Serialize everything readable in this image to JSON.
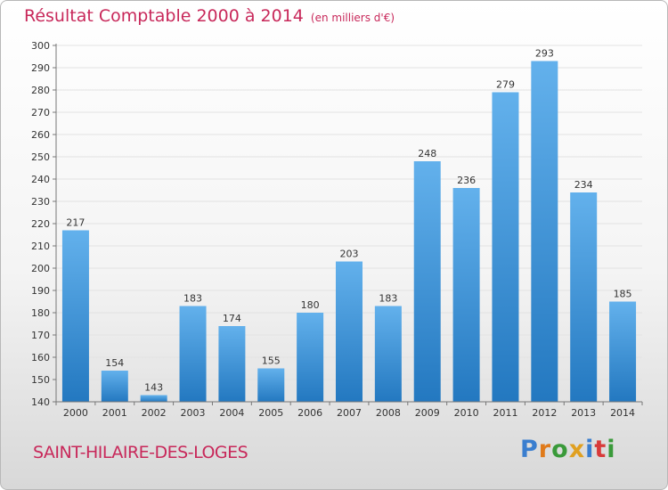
{
  "header": {
    "title": "Résultat Comptable 2000 à 2014",
    "unit": "(en milliers d'€)"
  },
  "footer": {
    "commune": "SAINT-HILAIRE-DES-LOGES",
    "logo": "Proxiti"
  },
  "colors": {
    "title": "#c8285a",
    "bar_top": "#63b1ec",
    "bar_bottom": "#2378c0",
    "logo": [
      "#3a7ecf",
      "#e07a1a",
      "#3a9a3a",
      "#e0a020",
      "#3a7ecf",
      "#d83a3a",
      "#3a9a3a"
    ]
  },
  "chart_data": {
    "type": "bar",
    "title": "Résultat Comptable 2000 à 2014",
    "subtitle": "(en milliers d'€)",
    "categories": [
      "2000",
      "2001",
      "2002",
      "2003",
      "2004",
      "2005",
      "2006",
      "2007",
      "2008",
      "2009",
      "2010",
      "2011",
      "2012",
      "2013",
      "2014"
    ],
    "values": [
      217,
      154,
      143,
      183,
      174,
      155,
      180,
      203,
      183,
      248,
      236,
      279,
      293,
      234,
      185
    ],
    "ylim": [
      140,
      300
    ],
    "yticks": [
      140,
      150,
      160,
      170,
      180,
      190,
      200,
      210,
      220,
      230,
      240,
      250,
      260,
      270,
      280,
      290,
      300
    ],
    "grid": true,
    "legend": "none"
  }
}
